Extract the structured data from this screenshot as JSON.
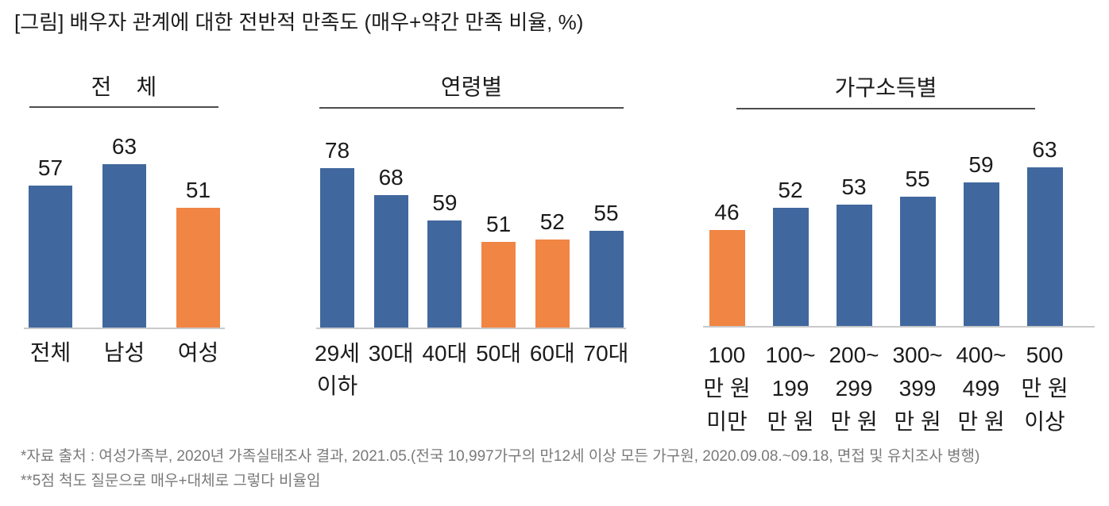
{
  "header": {
    "title": "[그림] 배우자 관계에 대한 전반적 만족도 (매우+약간 만족 비율, %)"
  },
  "colors": {
    "bar_default": "#41689E",
    "bar_highlight": "#F08544",
    "axis_line": "#C9C9C9",
    "title_underline": "#4D4D4D",
    "text": "#1B1B1B",
    "footnote_text": "#7A7A7A",
    "background": "#FFFFFF"
  },
  "chart_data": [
    {
      "type": "bar",
      "title": "전    체",
      "categories": [
        "전체",
        "남성",
        "여성"
      ],
      "values": [
        57,
        63,
        51
      ],
      "bar_styles": [
        "default",
        "default",
        "highlight"
      ],
      "ylim": [
        18,
        73
      ],
      "unit": "%",
      "grid": false,
      "legend": "none",
      "xlabel": "",
      "ylabel": ""
    },
    {
      "type": "bar",
      "title": "연령별",
      "categories": [
        "29세\n이하",
        "30대",
        "40대",
        "50대",
        "60대",
        "70대"
      ],
      "values": [
        78,
        68,
        59,
        51,
        52,
        55
      ],
      "bar_styles": [
        "default",
        "default",
        "default",
        "highlight",
        "highlight",
        "default"
      ],
      "ylim": [
        20,
        92
      ],
      "unit": "%",
      "grid": false,
      "legend": "none",
      "xlabel": "",
      "ylabel": ""
    },
    {
      "type": "bar",
      "title": "가구소득별",
      "categories": [
        "100\n만 원\n미만",
        "100~\n199\n만 원",
        "200~\n299\n만 원",
        "300~\n399\n만 원",
        "400~\n499\n만 원",
        "500\n만 원\n이상"
      ],
      "values": [
        46,
        52,
        53,
        55,
        59,
        63
      ],
      "bar_styles": [
        "highlight",
        "default",
        "default",
        "default",
        "default",
        "default"
      ],
      "ylim": [
        20,
        74
      ],
      "unit": "%",
      "grid": false,
      "legend": "none",
      "xlabel": "",
      "ylabel": ""
    }
  ],
  "footer": {
    "note1": "*자료 출처 : 여성가족부, 2020년 가족실태조사 결과, 2021.05.(전국 10,997가구의 만12세 이상 모든 가구원, 2020.09.08.~09.18, 면접 및 유치조사 병행)",
    "note2": "**5점 척도 질문으로 매우+대체로 그렇다 비율임"
  }
}
